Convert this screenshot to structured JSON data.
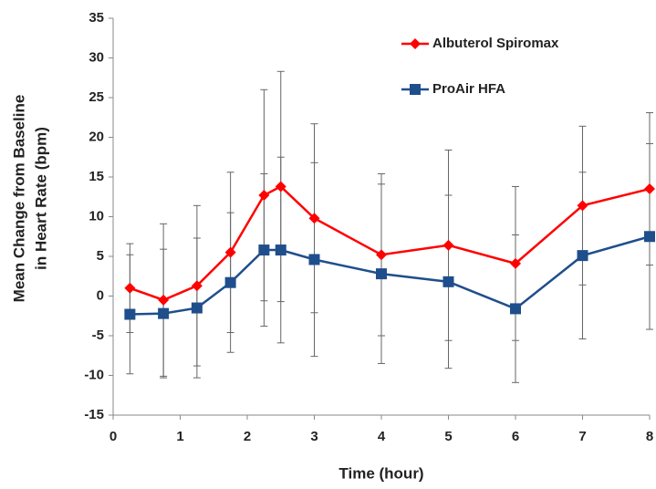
{
  "chart_data": {
    "type": "line",
    "ylabel": [
      "Mean Change from Baseline",
      "in Heart Rate (bpm)"
    ],
    "xlabel": "Time (hour)",
    "x": [
      0.25,
      0.75,
      1.25,
      1.75,
      2.25,
      2.5,
      3,
      4,
      5,
      6,
      7,
      8
    ],
    "series": [
      {
        "name": "Albuterol Spiromax",
        "color": "#ff0000",
        "marker": "diamond",
        "values": [
          1,
          -0.5,
          1.3,
          5.5,
          12.7,
          13.8,
          9.8,
          5.2,
          6.4,
          4.1,
          11.4,
          13.5
        ],
        "errors": [
          5.6,
          9.6,
          10.1,
          10.1,
          13.3,
          14.5,
          11.9,
          10.2,
          12,
          9.7,
          10,
          9.6
        ]
      },
      {
        "name": "ProAir HFA",
        "color": "#1f4e8c",
        "marker": "square",
        "values": [
          -2.3,
          -2.2,
          -1.5,
          1.7,
          5.8,
          5.8,
          4.6,
          2.8,
          1.8,
          -1.6,
          5.1,
          7.5
        ],
        "errors": [
          7.5,
          8.1,
          8.8,
          8.8,
          9.6,
          11.7,
          12.2,
          11.3,
          10.9,
          9.3,
          10.5,
          11.7
        ]
      }
    ],
    "xlim": [
      0,
      8
    ],
    "xticks": [
      0,
      1,
      2,
      3,
      4,
      5,
      6,
      7,
      8
    ],
    "ylim": [
      -15,
      35
    ],
    "yticks": [
      -15,
      -10,
      -5,
      0,
      5,
      10,
      15,
      20,
      25,
      30,
      35
    ],
    "grid": false,
    "legend": "upper-center"
  }
}
